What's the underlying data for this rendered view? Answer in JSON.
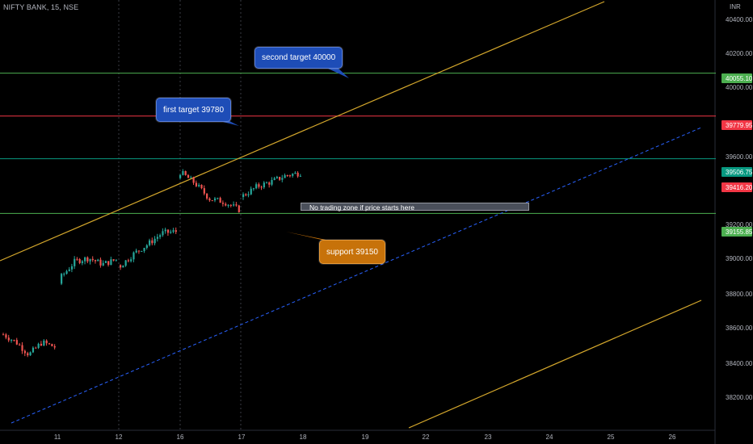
{
  "header": {
    "symbol": "NIFTY BANK, 15, NSE",
    "currency": "INR"
  },
  "price_axis": {
    "labels": [
      "40400.00",
      "40200.00",
      "40000.00",
      "39600.00",
      "39200.00",
      "39000.00",
      "38800.00",
      "38600.00",
      "38400.00",
      "38200.00"
    ],
    "tags": [
      {
        "value": "40055.10",
        "color": "#4caf50"
      },
      {
        "value": "39779.95",
        "color": "#f23645"
      },
      {
        "value": "39506.75",
        "color": "#089981"
      },
      {
        "value": "39416.20",
        "color": "#f23645"
      },
      {
        "value": "39155.85",
        "color": "#4caf50"
      }
    ]
  },
  "time_axis": {
    "labels": [
      "11",
      "12",
      "16",
      "17",
      "18",
      "19",
      "22",
      "23",
      "24",
      "25",
      "26"
    ]
  },
  "annotations": {
    "second_target": "second target 40000",
    "first_target": "first target 39780",
    "support": "support 39150",
    "no_trade_zone": "No trading zone if price  starts here"
  },
  "colors": {
    "background": "#000000",
    "candle_up": "#26a69a",
    "candle_down": "#ef5350",
    "trendline": "#d4a72c",
    "dashed_channel": "#2962ff",
    "target_line_green": "#4caf50",
    "target_line_red": "#f23645",
    "resistance_line": "#089981"
  },
  "chart_data": {
    "type": "candlestick",
    "symbol": "NIFTY BANK",
    "interval": "15",
    "exchange": "NSE",
    "y_range": [
      38090,
      40460
    ],
    "horizontal_levels": [
      40055.1,
      39779.95,
      39506.75,
      39155.85
    ],
    "last_price": 39416.2,
    "close_path": [
      [
        "10",
        38380
      ],
      [
        "10",
        38330
      ],
      [
        "10",
        38250
      ],
      [
        "10",
        38330
      ],
      [
        "10",
        38300
      ],
      [
        "11",
        38750
      ],
      [
        "11",
        38850
      ],
      [
        "11",
        38870
      ],
      [
        "11",
        38830
      ],
      [
        "11",
        38860
      ],
      [
        "12",
        38820
      ],
      [
        "12",
        38900
      ],
      [
        "12",
        38960
      ],
      [
        "12",
        39030
      ],
      [
        "12",
        39040
      ],
      [
        "16",
        39420
      ],
      [
        "16",
        39350
      ],
      [
        "16",
        39250
      ],
      [
        "16",
        39230
      ],
      [
        "16",
        39180
      ],
      [
        "17",
        39270
      ],
      [
        "17",
        39330
      ],
      [
        "17",
        39360
      ],
      [
        "17",
        39400
      ],
      [
        "17",
        39416.2
      ]
    ]
  }
}
